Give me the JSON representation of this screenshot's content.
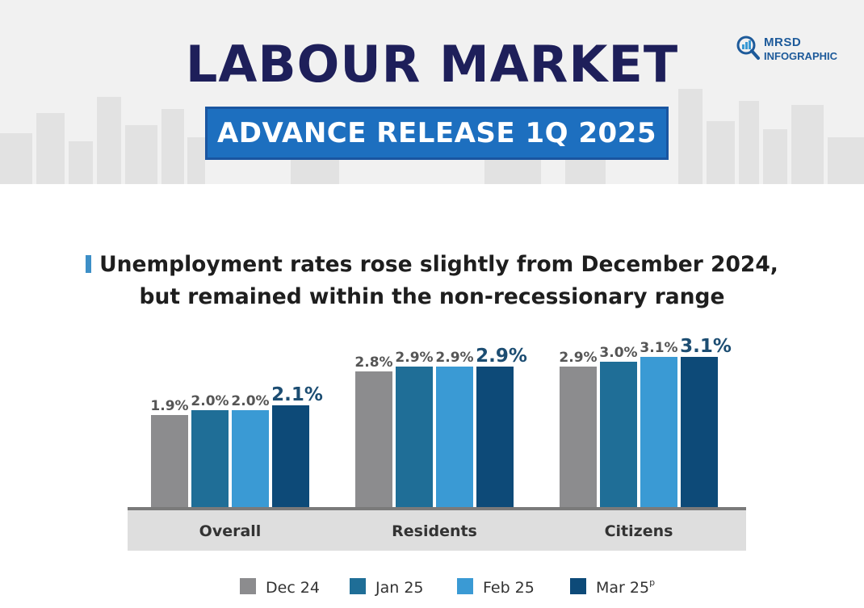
{
  "header": {
    "title": "LABOUR MARKET",
    "subtitle": "ADVANCE RELEASE 1Q 2025",
    "logo_line1": "MRSD",
    "logo_line2": "INFOGRAPHIC",
    "logo_icon": "magnifier-chart-icon"
  },
  "headline": {
    "line1": "Unemployment rates rose slightly from December 2024,",
    "line2": "but remained within the non-recessionary range"
  },
  "colors": {
    "title": "#1e1f5a",
    "subtitle_bg": "#1d6fbf",
    "accent_marker": "#3d8fc7"
  },
  "chart_data": {
    "type": "bar",
    "categories": [
      "Overall",
      "Residents",
      "Citizens"
    ],
    "series": [
      {
        "name": "Dec 24",
        "color": "#8c8c8e",
        "values": [
          1.9,
          2.8,
          2.9
        ],
        "labels": [
          "1.9%",
          "2.8%",
          "2.9%"
        ]
      },
      {
        "name": "Jan 25",
        "color": "#1f6e97",
        "values": [
          2.0,
          2.9,
          3.0
        ],
        "labels": [
          "2.0%",
          "2.9%",
          "3.0%"
        ]
      },
      {
        "name": "Feb 25",
        "color": "#3a9ad4",
        "values": [
          2.0,
          2.9,
          3.1
        ],
        "labels": [
          "2.0%",
          "2.9%",
          "3.1%"
        ]
      },
      {
        "name": "Mar 25",
        "name_suffix": "p",
        "color": "#0d4a78",
        "values": [
          2.1,
          2.9,
          3.1
        ],
        "labels": [
          "2.1%",
          "2.9%",
          "3.1%"
        ],
        "highlight": true
      }
    ],
    "legend_position": "bottom",
    "grid": false
  }
}
